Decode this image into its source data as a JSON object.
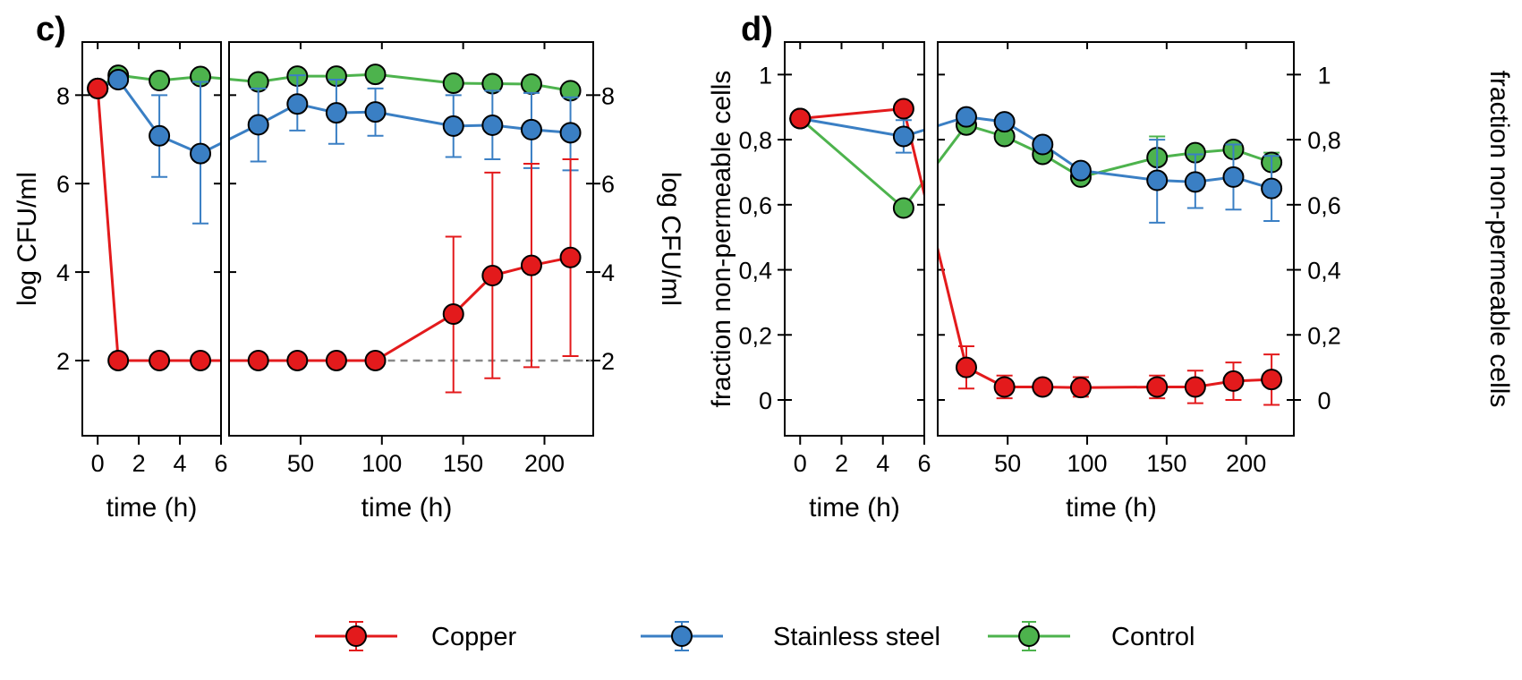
{
  "colors": {
    "copper": "#e31a1c",
    "stainless": "#3a7fc4",
    "control": "#4db34d",
    "threshold": "#888888"
  },
  "legend": {
    "items": [
      {
        "label": "Copper",
        "color_key": "copper"
      },
      {
        "label": "Stainless steel",
        "color_key": "stainless"
      },
      {
        "label": "Control",
        "color_key": "control"
      }
    ]
  },
  "chart_data": [
    {
      "panel_label": "c)",
      "type": "line",
      "ylabel_left": "log CFU/ml",
      "ylabel_right": "log CFU/ml",
      "xlabel_left": "time (h)",
      "xlabel_right": "time (h)",
      "ylim": [
        0.3,
        9.2
      ],
      "yticks": [
        2,
        4,
        6,
        8
      ],
      "ytick_labels": [
        "2",
        "4",
        "6",
        "8"
      ],
      "left_xlim": [
        -0.4,
        6
      ],
      "left_xticks": [
        0,
        2,
        4,
        6
      ],
      "left_xtick_labels": [
        "0",
        "2",
        "4",
        "6"
      ],
      "right_xlim": [
        6,
        230
      ],
      "right_xticks": [
        50,
        100,
        150,
        200
      ],
      "right_xtick_labels": [
        "50",
        "100",
        "150",
        "200"
      ],
      "grid": false,
      "legend_position": "bottom",
      "detection_limit": {
        "y": 2,
        "x_from": 96,
        "x_to": 230
      },
      "series": [
        {
          "name": "Copper",
          "color_key": "copper",
          "x": [
            0,
            1,
            3,
            5,
            24,
            48,
            72,
            96,
            144,
            168,
            192,
            216
          ],
          "y": [
            8.15,
            2,
            2,
            2,
            2,
            2,
            2,
            2,
            3.05,
            3.92,
            4.15,
            4.33
          ],
          "err_low": [
            null,
            null,
            null,
            null,
            null,
            null,
            null,
            null,
            1.28,
            1.6,
            1.85,
            2.1
          ],
          "err_high": [
            null,
            null,
            null,
            null,
            null,
            null,
            null,
            null,
            4.8,
            6.25,
            6.45,
            6.55
          ]
        },
        {
          "name": "Stainless steel",
          "color_key": "stainless",
          "x": [
            0,
            1,
            3,
            5,
            24,
            48,
            72,
            96,
            144,
            168,
            192,
            216
          ],
          "y": [
            8.15,
            8.35,
            7.08,
            6.68,
            7.33,
            7.8,
            7.6,
            7.62,
            7.3,
            7.32,
            7.22,
            7.15
          ],
          "err_low": [
            null,
            null,
            6.15,
            5.1,
            6.5,
            7.2,
            6.9,
            7.08,
            6.6,
            6.55,
            6.35,
            6.3
          ],
          "err_high": [
            null,
            null,
            8.0,
            8.3,
            8.15,
            8.45,
            8.35,
            8.15,
            8.0,
            8.1,
            8.05,
            7.95
          ]
        },
        {
          "name": "Control",
          "color_key": "control",
          "x": [
            0,
            1,
            3,
            5,
            24,
            48,
            72,
            96,
            144,
            168,
            192,
            216
          ],
          "y": [
            8.15,
            8.45,
            8.33,
            8.42,
            8.3,
            8.43,
            8.43,
            8.47,
            8.27,
            8.26,
            8.25,
            8.1
          ],
          "err_low": [
            null,
            null,
            null,
            null,
            null,
            null,
            null,
            null,
            null,
            null,
            null,
            null
          ],
          "err_high": [
            null,
            null,
            null,
            null,
            null,
            null,
            null,
            null,
            null,
            null,
            null,
            null
          ]
        }
      ]
    },
    {
      "panel_label": "d)",
      "type": "line",
      "ylabel_left": "fraction non-permeable cells",
      "ylabel_right": "fraction non-permeable cells",
      "xlabel_left": "time (h)",
      "xlabel_right": "time (h)",
      "ylim": [
        -0.11,
        1.1
      ],
      "yticks": [
        0,
        0.2,
        0.4,
        0.6,
        0.8,
        1
      ],
      "ytick_labels": [
        "0",
        "0,2",
        "0,4",
        "0,6",
        "0,8",
        "1"
      ],
      "left_xlim": [
        -0.4,
        6
      ],
      "left_xticks": [
        0,
        2,
        4,
        6
      ],
      "left_xtick_labels": [
        "0",
        "2",
        "4",
        "6"
      ],
      "right_xlim": [
        6,
        230
      ],
      "right_xticks": [
        50,
        100,
        150,
        200
      ],
      "right_xtick_labels": [
        "50",
        "100",
        "150",
        "200"
      ],
      "grid": false,
      "legend_position": "bottom",
      "series": [
        {
          "name": "Copper",
          "color_key": "copper",
          "x": [
            0,
            5,
            24,
            48,
            72,
            96,
            144,
            168,
            192,
            216
          ],
          "y": [
            0.865,
            0.895,
            0.1,
            0.04,
            0.04,
            0.038,
            0.04,
            0.04,
            0.058,
            0.063
          ],
          "err_low": [
            null,
            null,
            0.035,
            0.005,
            0.02,
            0.01,
            0.005,
            -0.01,
            0.0,
            -0.015
          ],
          "err_high": [
            null,
            null,
            0.165,
            0.075,
            0.06,
            0.07,
            0.075,
            0.09,
            0.115,
            0.14
          ]
        },
        {
          "name": "Stainless steel",
          "color_key": "stainless",
          "x": [
            0,
            5,
            24,
            48,
            72,
            96,
            144,
            168,
            192,
            216
          ],
          "y": [
            0.865,
            0.81,
            0.87,
            0.855,
            0.785,
            0.705,
            0.675,
            0.67,
            0.685,
            0.65
          ],
          "err_low": [
            null,
            0.76,
            null,
            null,
            null,
            null,
            0.545,
            0.59,
            0.585,
            0.55
          ],
          "err_high": [
            null,
            0.86,
            null,
            null,
            null,
            null,
            0.8,
            0.755,
            0.785,
            0.75
          ]
        },
        {
          "name": "Control",
          "color_key": "control",
          "x": [
            0,
            5,
            24,
            48,
            72,
            96,
            144,
            168,
            192,
            216
          ],
          "y": [
            0.865,
            0.59,
            0.845,
            0.81,
            0.755,
            0.685,
            0.745,
            0.76,
            0.77,
            0.73
          ],
          "err_low": [
            null,
            null,
            null,
            null,
            null,
            0.67,
            0.68,
            null,
            null,
            0.71
          ],
          "err_high": [
            null,
            null,
            null,
            null,
            null,
            0.7,
            0.81,
            null,
            null,
            0.76
          ]
        }
      ]
    }
  ]
}
